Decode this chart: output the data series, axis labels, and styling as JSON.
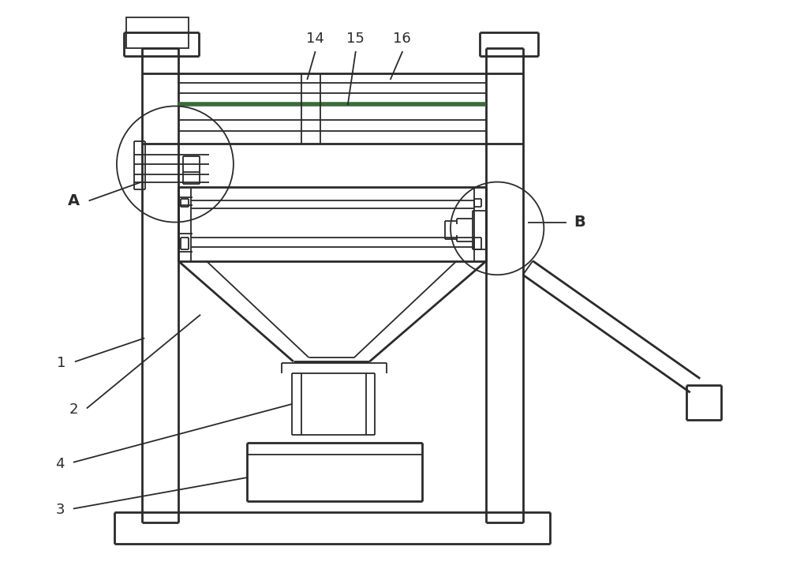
{
  "bg_color": "#ffffff",
  "line_color": "#2a2a2a",
  "lw": 1.3,
  "lw2": 2.0,
  "fig_width": 10.0,
  "fig_height": 7.21,
  "label_fontsize": 13
}
